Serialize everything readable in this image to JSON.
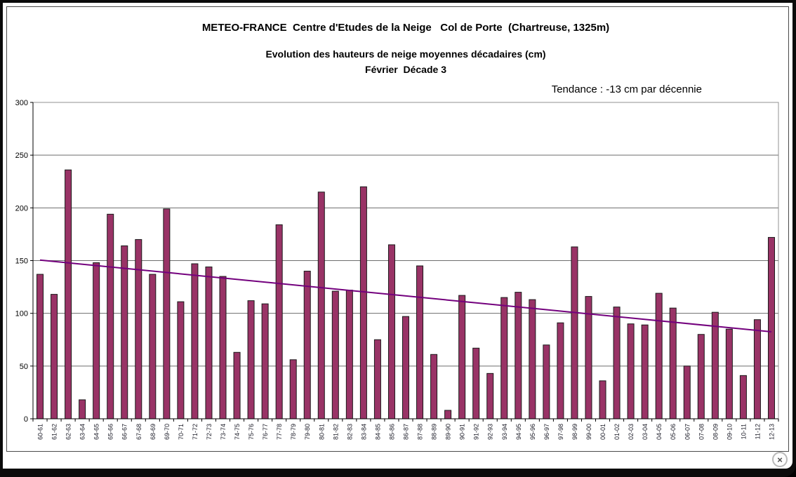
{
  "window": {
    "close_glyph": "×"
  },
  "chart_data": {
    "type": "bar",
    "title": "METEO-FRANCE  Centre d'Etudes de la Neige   Col de Porte  (Chartreuse, 1325m)",
    "subtitle1": "Evolution des hauteurs de neige moyennes décadaires (cm)",
    "subtitle2": "Février  Décade 3",
    "annotation": "Tendance : -13 cm par décennie",
    "xlabel": "",
    "ylabel": "",
    "ylim": [
      0,
      300
    ],
    "yticks": [
      0,
      50,
      100,
      150,
      200,
      250,
      300
    ],
    "grid": true,
    "legend": false,
    "categories": [
      "60-61",
      "61-62",
      "62-63",
      "63-64",
      "64-65",
      "65-66",
      "66-67",
      "67-68",
      "68-69",
      "69-70",
      "70-71",
      "71-72",
      "72-73",
      "73-74",
      "74-75",
      "75-76",
      "76-77",
      "77-78",
      "78-79",
      "79-80",
      "80-81",
      "81-82",
      "82-83",
      "83-84",
      "84-85",
      "85-86",
      "86-87",
      "87-88",
      "88-89",
      "89-90",
      "90-91",
      "91-92",
      "92-93",
      "93-94",
      "94-95",
      "95-96",
      "96-97",
      "97-98",
      "98-99",
      "99-00",
      "00-01",
      "01-02",
      "02-03",
      "03-04",
      "04-05",
      "05-06",
      "06-07",
      "07-08",
      "08-09",
      "09-10",
      "10-11",
      "11-12",
      "12-13"
    ],
    "values": [
      137,
      118,
      236,
      18,
      148,
      194,
      164,
      170,
      137,
      199,
      111,
      147,
      144,
      135,
      63,
      112,
      109,
      184,
      56,
      140,
      215,
      121,
      122,
      220,
      75,
      165,
      97,
      145,
      61,
      8,
      117,
      67,
      43,
      115,
      120,
      113,
      70,
      91,
      163,
      116,
      36,
      106,
      90,
      89,
      119,
      105,
      50,
      80,
      101,
      85,
      41,
      94,
      172
    ],
    "trend_line": {
      "start_value": 150.5,
      "end_value": 82.5
    },
    "colors": {
      "bar_fill": "#993366",
      "bar_border": "#1a1a1a",
      "gridline": "#6e6e6e",
      "plot_border": "#909090",
      "axis": "#000000",
      "trend": "#73007d",
      "tick_label": "#1c1c28",
      "background": "#ffffff"
    }
  }
}
